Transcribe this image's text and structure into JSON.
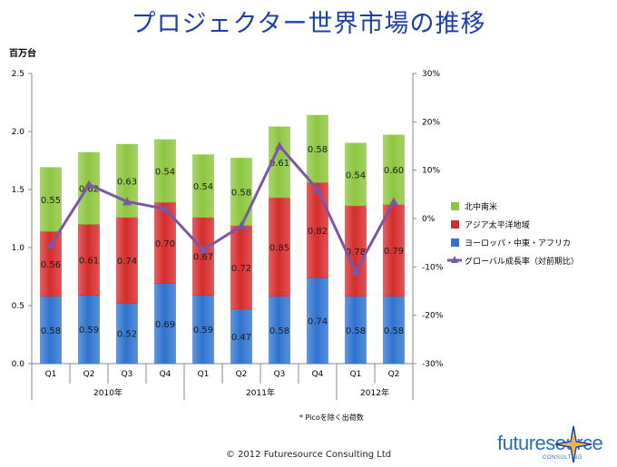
{
  "title": "プロジェクター世界市場の推移",
  "unit_label": "百万台",
  "footnote": "* Picoを除く出荷数",
  "copyright": "© 2012 Futuresource Consulting Ltd",
  "logo": {
    "word": "futuresource",
    "sub": "CONSULTING"
  },
  "colors": {
    "blue": "#2f73cf",
    "red": "#d62b2b",
    "green": "#8cc63f",
    "line": "#7b56a6"
  },
  "chart_data": {
    "type": "bar",
    "stacked": true,
    "categories": [
      "Q1",
      "Q2",
      "Q3",
      "Q4",
      "Q1",
      "Q2",
      "Q3",
      "Q4",
      "Q1",
      "Q2"
    ],
    "year_groups": [
      {
        "label": "2010年",
        "span": 4
      },
      {
        "label": "2011年",
        "span": 4
      },
      {
        "label": "2012年",
        "span": 2
      }
    ],
    "series": [
      {
        "name": "ヨーロッパ・中東・アフリカ",
        "values": [
          0.58,
          0.59,
          0.52,
          0.69,
          0.59,
          0.47,
          0.58,
          0.74,
          0.58,
          0.58
        ],
        "labels": [
          "0.58",
          "0.59",
          "0.52",
          "0.69",
          "0.59",
          "0.47",
          "0.58",
          "0.74",
          "0.58",
          "0.58"
        ]
      },
      {
        "name": "アジア太平洋地域",
        "values": [
          0.56,
          0.61,
          0.74,
          0.7,
          0.67,
          0.72,
          0.85,
          0.82,
          0.78,
          0.79
        ],
        "labels": [
          "0.56",
          "0.61",
          "0.74",
          "0.70",
          "0.67",
          "0.72",
          "0.85",
          "0.82",
          "0.78",
          "0.79"
        ]
      },
      {
        "name": "北中南米",
        "values": [
          0.55,
          0.62,
          0.63,
          0.54,
          0.54,
          0.58,
          0.61,
          0.58,
          0.54,
          0.6
        ],
        "labels": [
          "0.55",
          "0.62",
          "0.63",
          "0.54",
          "0.54",
          "0.58",
          "0.61",
          "0.58",
          "0.54",
          "0.60"
        ]
      }
    ],
    "line_series": {
      "name": "グローバル成長率（対前期比）",
      "values": [
        -5.5,
        7,
        3.5,
        2,
        -6.5,
        -1.5,
        15,
        6,
        -11,
        3.5
      ]
    },
    "ylim": [
      0,
      2.5
    ],
    "y_ticks": [
      "0.0",
      "0.5",
      "1.0",
      "1.5",
      "2.0",
      "2.5"
    ],
    "y2lim": [
      -30,
      30
    ],
    "y2_ticks": [
      "-30%",
      "-20%",
      "-10%",
      "0%",
      "10%",
      "20%",
      "30%"
    ],
    "legend_order": [
      "北中南米",
      "アジア太平洋地域",
      "ヨーロッパ・中東・アフリカ",
      "グローバル成長率（対前期比）"
    ],
    "legend_position": "right",
    "grid": false
  }
}
